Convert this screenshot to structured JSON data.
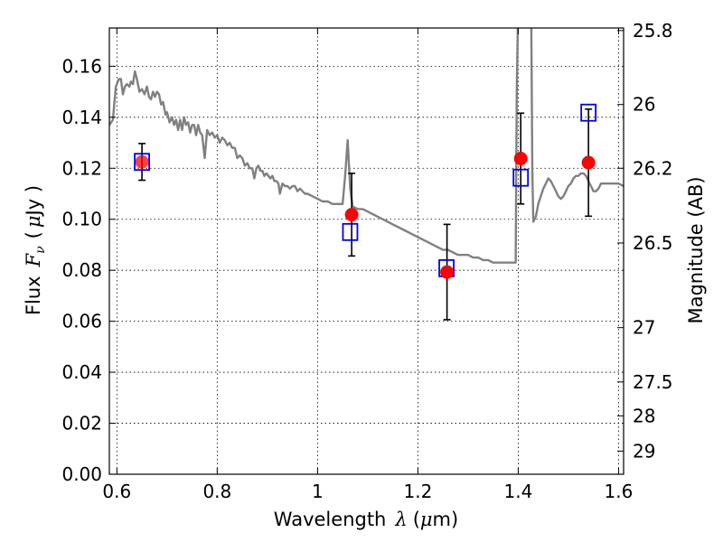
{
  "chart_data": {
    "type": "scatter",
    "xlabel": {
      "text": "Wavelength",
      "symbol": "λ",
      "unit_open": "(",
      "unit_mu": "μ",
      "unit_rest": "m)"
    },
    "ylabel": {
      "text": "Flux",
      "symbol": "F",
      "subscript": "ν",
      "unit_open": "(",
      "unit_mu": "μ",
      "unit_rest": "Jy )"
    },
    "y2label": "Magnitude (AB)",
    "xlim": [
      0.585,
      1.61
    ],
    "ylim": [
      0.0,
      0.175
    ],
    "grid": true,
    "x_ticks": [
      {
        "value": 0.6,
        "label": "0.6"
      },
      {
        "value": 0.8,
        "label": "0.8"
      },
      {
        "value": 1.0,
        "label": "1"
      },
      {
        "value": 1.2,
        "label": "1.2"
      },
      {
        "value": 1.4,
        "label": "1.4"
      },
      {
        "value": 1.6,
        "label": "1.6"
      }
    ],
    "y_ticks": [
      {
        "value": 0.0,
        "label": "0.00"
      },
      {
        "value": 0.02,
        "label": "0.02"
      },
      {
        "value": 0.04,
        "label": "0.04"
      },
      {
        "value": 0.06,
        "label": "0.06"
      },
      {
        "value": 0.08,
        "label": "0.08"
      },
      {
        "value": 0.1,
        "label": "0.10"
      },
      {
        "value": 0.12,
        "label": "0.12"
      },
      {
        "value": 0.14,
        "label": "0.14"
      },
      {
        "value": 0.16,
        "label": "0.16"
      }
    ],
    "y2_ticks": [
      {
        "flux": 0.174,
        "label": "25.8"
      },
      {
        "flux": 0.145,
        "label": "26"
      },
      {
        "flux": 0.12,
        "label": "26.2"
      },
      {
        "flux": 0.0907,
        "label": "26.5"
      },
      {
        "flux": 0.0575,
        "label": "27"
      },
      {
        "flux": 0.0362,
        "label": "27.5"
      },
      {
        "flux": 0.0229,
        "label": "28"
      },
      {
        "flux": 0.0091,
        "label": "29"
      }
    ],
    "series": [
      {
        "kind": "model_spectrum",
        "color": "#808080",
        "points": [
          [
            0.585,
            0.137
          ],
          [
            0.592,
            0.139
          ],
          [
            0.598,
            0.152
          ],
          [
            0.604,
            0.155
          ],
          [
            0.608,
            0.155
          ],
          [
            0.612,
            0.149
          ],
          [
            0.616,
            0.152
          ],
          [
            0.62,
            0.153
          ],
          [
            0.625,
            0.152
          ],
          [
            0.628,
            0.154
          ],
          [
            0.632,
            0.153
          ],
          [
            0.636,
            0.158
          ],
          [
            0.64,
            0.155
          ],
          [
            0.645,
            0.15
          ],
          [
            0.65,
            0.151
          ],
          [
            0.655,
            0.149
          ],
          [
            0.66,
            0.152
          ],
          [
            0.664,
            0.148
          ],
          [
            0.668,
            0.147
          ],
          [
            0.672,
            0.15
          ],
          [
            0.676,
            0.148
          ],
          [
            0.68,
            0.15
          ],
          [
            0.684,
            0.149
          ],
          [
            0.688,
            0.145
          ],
          [
            0.692,
            0.146
          ],
          [
            0.697,
            0.141
          ],
          [
            0.7,
            0.142
          ],
          [
            0.705,
            0.138
          ],
          [
            0.71,
            0.14
          ],
          [
            0.714,
            0.137
          ],
          [
            0.718,
            0.139
          ],
          [
            0.722,
            0.135
          ],
          [
            0.726,
            0.139
          ],
          [
            0.73,
            0.135
          ],
          [
            0.734,
            0.14
          ],
          [
            0.738,
            0.137
          ],
          [
            0.742,
            0.138
          ],
          [
            0.746,
            0.134
          ],
          [
            0.75,
            0.137
          ],
          [
            0.754,
            0.137
          ],
          [
            0.758,
            0.133
          ],
          [
            0.762,
            0.137
          ],
          [
            0.766,
            0.134
          ],
          [
            0.77,
            0.133
          ],
          [
            0.775,
            0.124
          ],
          [
            0.78,
            0.135
          ],
          [
            0.785,
            0.133
          ],
          [
            0.79,
            0.134
          ],
          [
            0.795,
            0.132
          ],
          [
            0.8,
            0.133
          ],
          [
            0.805,
            0.13
          ],
          [
            0.81,
            0.132
          ],
          [
            0.815,
            0.131
          ],
          [
            0.82,
            0.129
          ],
          [
            0.825,
            0.13
          ],
          [
            0.83,
            0.128
          ],
          [
            0.835,
            0.128
          ],
          [
            0.84,
            0.124
          ],
          [
            0.845,
            0.125
          ],
          [
            0.85,
            0.124
          ],
          [
            0.855,
            0.121
          ],
          [
            0.86,
            0.122
          ],
          [
            0.865,
            0.12
          ],
          [
            0.87,
            0.12
          ],
          [
            0.874,
            0.116
          ],
          [
            0.878,
            0.12
          ],
          [
            0.882,
            0.121
          ],
          [
            0.886,
            0.119
          ],
          [
            0.89,
            0.119
          ],
          [
            0.894,
            0.117
          ],
          [
            0.898,
            0.118
          ],
          [
            0.902,
            0.117
          ],
          [
            0.906,
            0.116
          ],
          [
            0.91,
            0.117
          ],
          [
            0.914,
            0.115
          ],
          [
            0.918,
            0.115
          ],
          [
            0.922,
            0.114
          ],
          [
            0.925,
            0.11
          ],
          [
            0.93,
            0.114
          ],
          [
            0.935,
            0.113
          ],
          [
            0.94,
            0.113
          ],
          [
            0.945,
            0.112
          ],
          [
            0.95,
            0.113
          ],
          [
            0.955,
            0.113
          ],
          [
            0.96,
            0.111
          ],
          [
            0.965,
            0.112
          ],
          [
            0.97,
            0.111
          ],
          [
            0.975,
            0.11
          ],
          [
            0.98,
            0.11
          ],
          [
            0.99,
            0.109
          ],
          [
            1.0,
            0.108
          ],
          [
            1.01,
            0.107
          ],
          [
            1.02,
            0.107
          ],
          [
            1.03,
            0.106
          ],
          [
            1.04,
            0.106
          ],
          [
            1.05,
            0.106
          ],
          [
            1.055,
            0.117
          ],
          [
            1.06,
            0.131
          ],
          [
            1.065,
            0.112
          ],
          [
            1.07,
            0.105
          ],
          [
            1.08,
            0.104
          ],
          [
            1.09,
            0.104
          ],
          [
            1.1,
            0.103
          ],
          [
            1.11,
            0.102
          ],
          [
            1.12,
            0.101
          ],
          [
            1.13,
            0.1
          ],
          [
            1.14,
            0.099
          ],
          [
            1.15,
            0.098
          ],
          [
            1.16,
            0.097
          ],
          [
            1.17,
            0.096
          ],
          [
            1.18,
            0.095
          ],
          [
            1.19,
            0.094
          ],
          [
            1.2,
            0.093
          ],
          [
            1.21,
            0.092
          ],
          [
            1.22,
            0.091
          ],
          [
            1.23,
            0.09
          ],
          [
            1.24,
            0.089
          ],
          [
            1.25,
            0.088
          ],
          [
            1.26,
            0.088
          ],
          [
            1.27,
            0.087
          ],
          [
            1.28,
            0.086
          ],
          [
            1.29,
            0.086
          ],
          [
            1.3,
            0.086
          ],
          [
            1.31,
            0.085
          ],
          [
            1.32,
            0.085
          ],
          [
            1.33,
            0.084
          ],
          [
            1.34,
            0.084
          ],
          [
            1.35,
            0.083
          ],
          [
            1.36,
            0.083
          ],
          [
            1.37,
            0.083
          ],
          [
            1.38,
            0.083
          ],
          [
            1.39,
            0.083
          ],
          [
            1.395,
            0.083
          ],
          [
            1.397,
            0.15
          ],
          [
            1.399,
            0.175
          ],
          [
            1.4,
            0.176
          ],
          [
            1.426,
            0.176
          ],
          [
            1.428,
            0.12
          ],
          [
            1.43,
            0.099
          ],
          [
            1.435,
            0.101
          ],
          [
            1.44,
            0.106
          ],
          [
            1.445,
            0.109
          ],
          [
            1.45,
            0.112
          ],
          [
            1.455,
            0.114
          ],
          [
            1.46,
            0.116
          ],
          [
            1.465,
            0.115
          ],
          [
            1.47,
            0.113
          ],
          [
            1.475,
            0.111
          ],
          [
            1.48,
            0.109
          ],
          [
            1.485,
            0.108
          ],
          [
            1.49,
            0.109
          ],
          [
            1.495,
            0.111
          ],
          [
            1.5,
            0.113
          ],
          [
            1.505,
            0.114
          ],
          [
            1.51,
            0.116
          ],
          [
            1.515,
            0.117
          ],
          [
            1.52,
            0.117
          ],
          [
            1.525,
            0.118
          ],
          [
            1.53,
            0.118
          ],
          [
            1.535,
            0.117
          ],
          [
            1.54,
            0.115
          ],
          [
            1.545,
            0.113
          ],
          [
            1.55,
            0.111
          ],
          [
            1.555,
            0.111
          ],
          [
            1.56,
            0.112
          ],
          [
            1.565,
            0.114
          ],
          [
            1.57,
            0.114
          ],
          [
            1.58,
            0.114
          ],
          [
            1.59,
            0.114
          ],
          [
            1.6,
            0.114
          ],
          [
            1.61,
            0.113
          ]
        ]
      },
      {
        "kind": "observed",
        "color": "#ff0000",
        "points": [
          {
            "x": 0.65,
            "y": 0.1225,
            "err": 0.0072
          },
          {
            "x": 1.068,
            "y": 0.1018,
            "err": 0.0162
          },
          {
            "x": 1.258,
            "y": 0.0793,
            "err": 0.0187
          },
          {
            "x": 1.405,
            "y": 0.1238,
            "err": 0.0178
          },
          {
            "x": 1.54,
            "y": 0.1222,
            "err": 0.021
          }
        ]
      },
      {
        "kind": "model_synthetic_photometry",
        "color": "#0000ee",
        "points": [
          {
            "x": 0.65,
            "y": 0.1225
          },
          {
            "x": 1.065,
            "y": 0.095
          },
          {
            "x": 1.257,
            "y": 0.0808
          },
          {
            "x": 1.405,
            "y": 0.1163
          },
          {
            "x": 1.54,
            "y": 0.1418
          }
        ]
      }
    ]
  }
}
